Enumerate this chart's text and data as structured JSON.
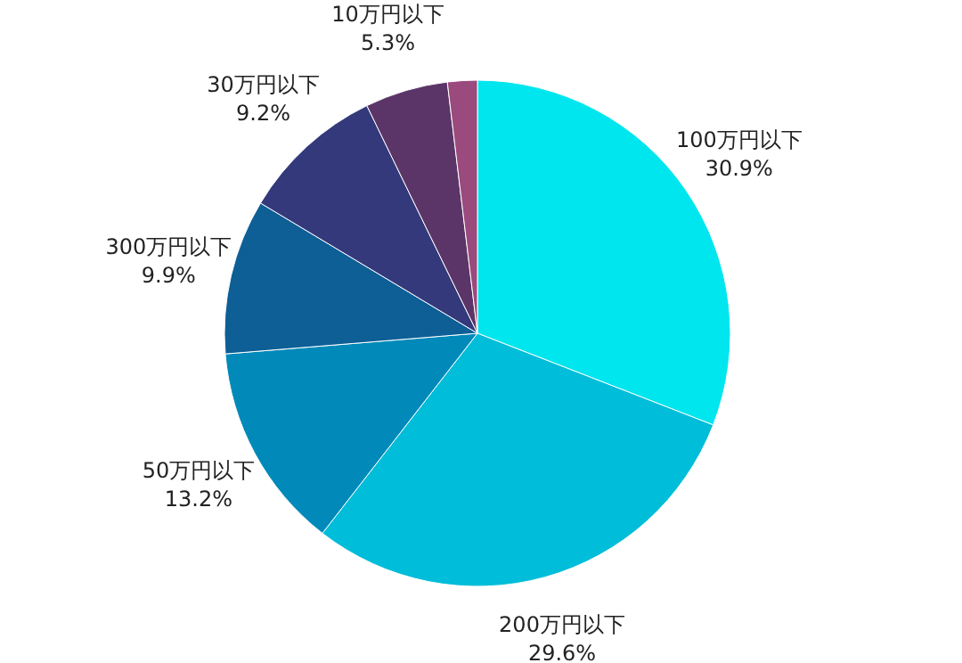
{
  "chart_data": {
    "type": "pie",
    "categories": [
      "100万円以下",
      "200万円以下",
      "50万円以下",
      "300万円以下",
      "30万円以下",
      "10万円以下",
      null
    ],
    "values": [
      30.9,
      29.6,
      13.2,
      9.9,
      9.2,
      5.3,
      1.9
    ],
    "value_labels": [
      "30.9%",
      "29.6%",
      "13.2%",
      "9.9%",
      "9.2%",
      "5.3%",
      null
    ],
    "colors": [
      "#00e6ee",
      "#00bdd9",
      "#0089b9",
      "#0d5f96",
      "#33397b",
      "#5b3568",
      "#9a4a7c"
    ]
  }
}
